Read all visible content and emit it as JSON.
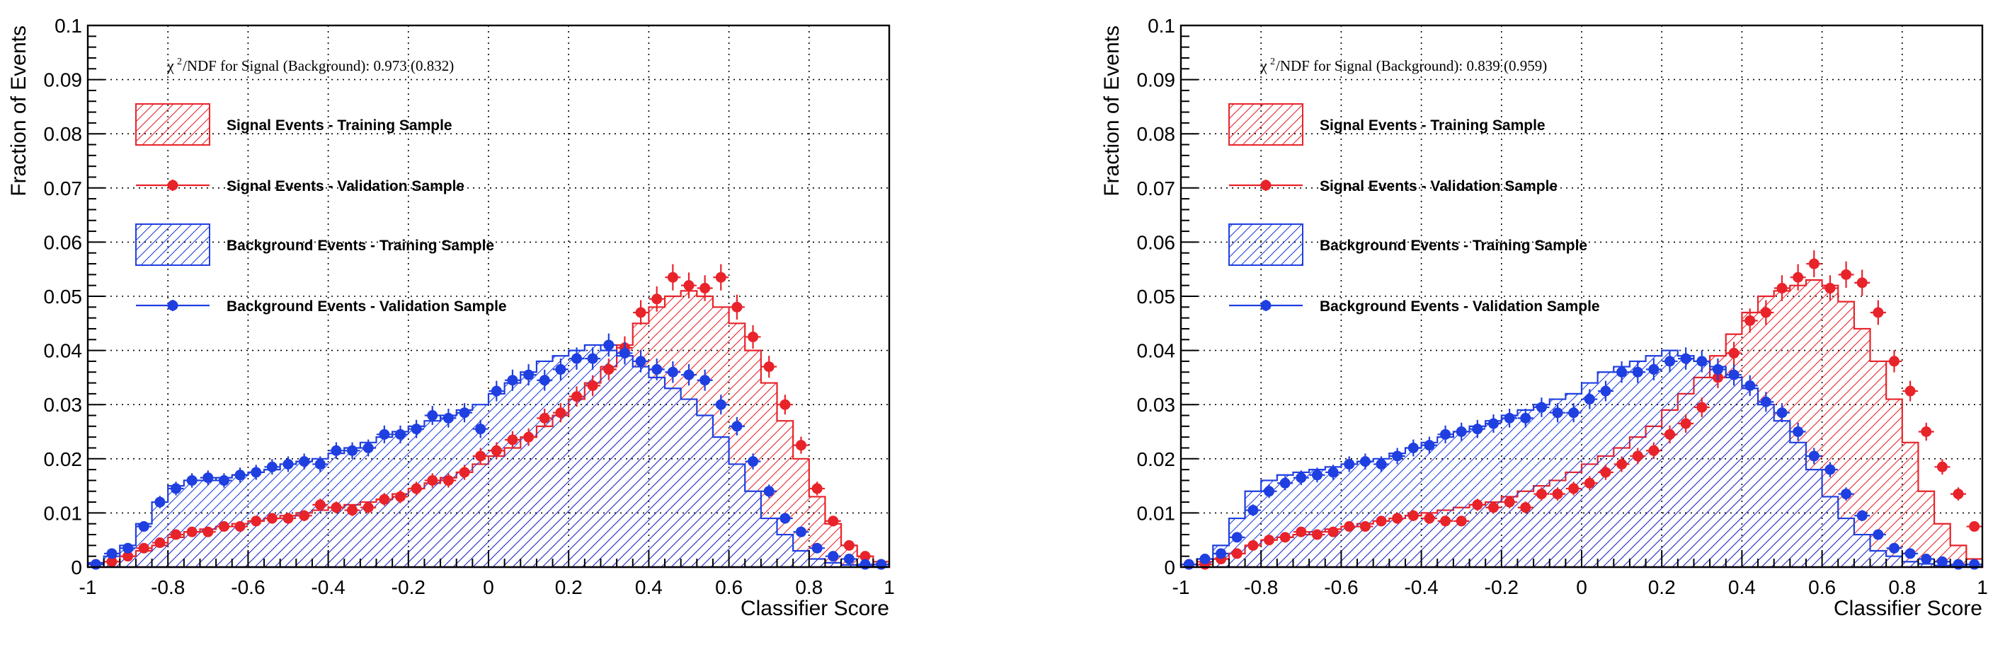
{
  "chart_data": [
    {
      "type": "histogram",
      "chi2_prefix": "χ",
      "chi2_sup": "2",
      "chi2_text": "/NDF for Signal (Background): 0.973 (0.832)",
      "xlabel": "Classifier Score",
      "ylabel": "Fraction of Events",
      "xlim": [
        -1,
        1
      ],
      "ylim": [
        0,
        0.1
      ],
      "grid": true,
      "legend_position": "top-left",
      "x_ticks": [
        "-1",
        "-0.8",
        "-0.6",
        "-0.4",
        "-0.2",
        "0",
        "0.2",
        "0.4",
        "0.6",
        "0.8",
        "1"
      ],
      "y_ticks": [
        "0",
        "0.01",
        "0.02",
        "0.03",
        "0.04",
        "0.05",
        "0.06",
        "0.07",
        "0.08",
        "0.09",
        "0.1"
      ],
      "legend": [
        {
          "label": "Signal Events - Training Sample",
          "style": "hatch-box",
          "color": "#e8232a"
        },
        {
          "label": "Signal Events - Validation Sample",
          "style": "marker",
          "color": "#e8232a"
        },
        {
          "label": "Background Events - Training Sample",
          "style": "hatch-box",
          "color": "#1f3fe0"
        },
        {
          "label": "Background Events - Validation Sample",
          "style": "marker",
          "color": "#1f3fe0"
        }
      ],
      "bins": {
        "start": -1,
        "width": 0.04,
        "count": 50
      },
      "series": [
        {
          "role": "signal-training",
          "values": [
            0.0005,
            0.001,
            0.002,
            0.003,
            0.004,
            0.0055,
            0.0065,
            0.007,
            0.0075,
            0.008,
            0.0085,
            0.009,
            0.0095,
            0.01,
            0.0105,
            0.011,
            0.0115,
            0.012,
            0.0125,
            0.0135,
            0.0145,
            0.0155,
            0.0165,
            0.0175,
            0.019,
            0.0205,
            0.022,
            0.024,
            0.026,
            0.028,
            0.031,
            0.034,
            0.037,
            0.041,
            0.045,
            0.048,
            0.05,
            0.051,
            0.05,
            0.048,
            0.045,
            0.04,
            0.034,
            0.027,
            0.02,
            0.013,
            0.008,
            0.004,
            0.002,
            0.001
          ]
        },
        {
          "role": "signal-validation",
          "values": [
            0.0005,
            0.001,
            0.002,
            0.0035,
            0.0045,
            0.006,
            0.0065,
            0.0065,
            0.0075,
            0.0075,
            0.0085,
            0.009,
            0.009,
            0.0095,
            0.0115,
            0.011,
            0.0105,
            0.011,
            0.0125,
            0.013,
            0.0145,
            0.016,
            0.016,
            0.0175,
            0.0205,
            0.0215,
            0.0235,
            0.024,
            0.0275,
            0.0285,
            0.0315,
            0.0335,
            0.0365,
            0.0405,
            0.047,
            0.0495,
            0.0535,
            0.052,
            0.0515,
            0.0535,
            0.048,
            0.0425,
            0.037,
            0.03,
            0.0225,
            0.0145,
            0.0085,
            0.004,
            0.002,
            0.0005
          ]
        },
        {
          "role": "background-training",
          "values": [
            0.0008,
            0.002,
            0.004,
            0.008,
            0.012,
            0.015,
            0.016,
            0.016,
            0.0165,
            0.017,
            0.0175,
            0.018,
            0.019,
            0.0195,
            0.02,
            0.021,
            0.022,
            0.023,
            0.024,
            0.025,
            0.026,
            0.027,
            0.028,
            0.029,
            0.03,
            0.032,
            0.034,
            0.036,
            0.038,
            0.039,
            0.04,
            0.041,
            0.04,
            0.039,
            0.037,
            0.035,
            0.033,
            0.031,
            0.028,
            0.024,
            0.019,
            0.014,
            0.009,
            0.006,
            0.003,
            0.0015,
            0.0008,
            0.0004,
            0.0002,
            0.0001
          ]
        },
        {
          "role": "background-validation",
          "values": [
            0.0005,
            0.0025,
            0.0035,
            0.0075,
            0.012,
            0.0145,
            0.016,
            0.0165,
            0.016,
            0.017,
            0.0175,
            0.0185,
            0.019,
            0.0195,
            0.019,
            0.0215,
            0.0215,
            0.022,
            0.0245,
            0.0245,
            0.0255,
            0.028,
            0.0275,
            0.0285,
            0.0255,
            0.0325,
            0.0345,
            0.0355,
            0.0345,
            0.0365,
            0.0385,
            0.0385,
            0.041,
            0.0395,
            0.038,
            0.0365,
            0.036,
            0.0355,
            0.0345,
            0.03,
            0.026,
            0.0195,
            0.014,
            0.009,
            0.0065,
            0.0035,
            0.002,
            0.0015,
            0.0005,
            0.0005
          ]
        }
      ]
    },
    {
      "type": "histogram",
      "chi2_prefix": "χ",
      "chi2_sup": "2",
      "chi2_text": "/NDF for Signal (Background): 0.839 (0.959)",
      "xlabel": "Classifier Score",
      "ylabel": "Fraction of Events",
      "xlim": [
        -1,
        1
      ],
      "ylim": [
        0,
        0.1
      ],
      "grid": true,
      "legend_position": "top-left",
      "x_ticks": [
        "-1",
        "-0.8",
        "-0.6",
        "-0.4",
        "-0.2",
        "0",
        "0.2",
        "0.4",
        "0.6",
        "0.8",
        "1"
      ],
      "y_ticks": [
        "0",
        "0.01",
        "0.02",
        "0.03",
        "0.04",
        "0.05",
        "0.06",
        "0.07",
        "0.08",
        "0.09",
        "0.1"
      ],
      "legend": [
        {
          "label": "Signal Events - Training Sample",
          "style": "hatch-box",
          "color": "#e8232a"
        },
        {
          "label": "Signal Events - Validation Sample",
          "style": "marker",
          "color": "#e8232a"
        },
        {
          "label": "Background Events - Training Sample",
          "style": "hatch-box",
          "color": "#1f3fe0"
        },
        {
          "label": "Background Events - Validation Sample",
          "style": "marker",
          "color": "#1f3fe0"
        }
      ],
      "bins": {
        "start": -1,
        "width": 0.04,
        "count": 50
      },
      "series": [
        {
          "role": "signal-training",
          "values": [
            0.0005,
            0.001,
            0.0015,
            0.0025,
            0.004,
            0.005,
            0.0055,
            0.006,
            0.0065,
            0.007,
            0.0075,
            0.008,
            0.0085,
            0.009,
            0.0095,
            0.01,
            0.0105,
            0.011,
            0.0115,
            0.012,
            0.013,
            0.014,
            0.015,
            0.016,
            0.0175,
            0.019,
            0.0205,
            0.022,
            0.024,
            0.026,
            0.029,
            0.032,
            0.035,
            0.039,
            0.043,
            0.047,
            0.05,
            0.051,
            0.052,
            0.053,
            0.052,
            0.049,
            0.044,
            0.038,
            0.031,
            0.023,
            0.014,
            0.008,
            0.004,
            0.0015
          ]
        },
        {
          "role": "signal-validation",
          "values": [
            0.0005,
            0.0005,
            0.0015,
            0.0025,
            0.004,
            0.005,
            0.0055,
            0.0065,
            0.006,
            0.0065,
            0.0075,
            0.0075,
            0.0085,
            0.009,
            0.0095,
            0.009,
            0.0085,
            0.0085,
            0.0115,
            0.011,
            0.012,
            0.011,
            0.0135,
            0.0135,
            0.0145,
            0.0155,
            0.0175,
            0.019,
            0.0205,
            0.0215,
            0.0245,
            0.0265,
            0.0295,
            0.035,
            0.0395,
            0.0455,
            0.047,
            0.0515,
            0.0535,
            0.056,
            0.0515,
            0.054,
            0.0525,
            0.047,
            0.038,
            0.0325,
            0.025,
            0.0185,
            0.0135,
            0.0075
          ]
        },
        {
          "role": "background-training",
          "values": [
            0.0005,
            0.0015,
            0.004,
            0.009,
            0.014,
            0.016,
            0.017,
            0.0175,
            0.018,
            0.0185,
            0.019,
            0.0195,
            0.02,
            0.021,
            0.022,
            0.023,
            0.024,
            0.025,
            0.026,
            0.027,
            0.028,
            0.029,
            0.03,
            0.031,
            0.032,
            0.034,
            0.036,
            0.037,
            0.038,
            0.039,
            0.04,
            0.039,
            0.038,
            0.037,
            0.035,
            0.033,
            0.03,
            0.027,
            0.023,
            0.018,
            0.013,
            0.009,
            0.006,
            0.003,
            0.002,
            0.001,
            0.0006,
            0.0003,
            0.0002,
            0.0001
          ]
        },
        {
          "role": "background-validation",
          "values": [
            0.0005,
            0.0015,
            0.0025,
            0.0055,
            0.0105,
            0.014,
            0.0155,
            0.0165,
            0.017,
            0.0175,
            0.019,
            0.0195,
            0.019,
            0.0205,
            0.022,
            0.0225,
            0.0245,
            0.025,
            0.0255,
            0.0265,
            0.0275,
            0.0275,
            0.0295,
            0.0285,
            0.0285,
            0.031,
            0.0325,
            0.036,
            0.036,
            0.0365,
            0.038,
            0.0385,
            0.038,
            0.0365,
            0.0355,
            0.0335,
            0.0305,
            0.0285,
            0.025,
            0.0205,
            0.018,
            0.0135,
            0.0095,
            0.006,
            0.0035,
            0.0025,
            0.0015,
            0.001,
            0.0005,
            0.0005
          ]
        }
      ]
    }
  ]
}
